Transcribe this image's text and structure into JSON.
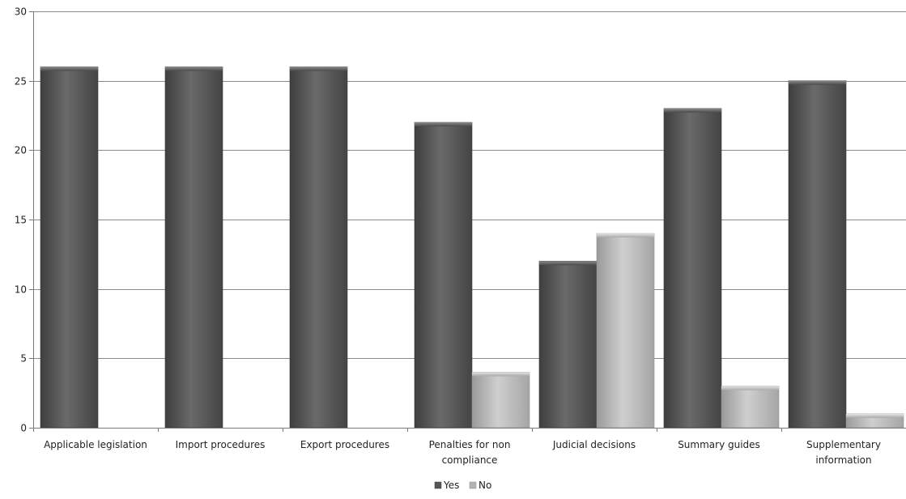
{
  "chart_data": {
    "type": "bar",
    "title": "",
    "xlabel": "",
    "ylabel": "",
    "ylim": [
      0,
      30
    ],
    "y_ticks": [
      0,
      5,
      10,
      15,
      20,
      25,
      30
    ],
    "grid": true,
    "legend_position": "bottom",
    "categories": [
      "Applicable legislation",
      "Import procedures",
      "Export procedures",
      "Penalties for non compliance",
      "Judicial decisions",
      "Summary guides",
      "Supplementary information"
    ],
    "category_label_lines": [
      [
        "Applicable legislation"
      ],
      [
        "Import procedures"
      ],
      [
        "Export procedures"
      ],
      [
        "Penalties for non",
        "compliance"
      ],
      [
        "Judicial decisions"
      ],
      [
        "Summary guides"
      ],
      [
        "Supplementary",
        "information"
      ]
    ],
    "series": [
      {
        "name": "Yes",
        "values": [
          26,
          26,
          26,
          22,
          12,
          23,
          25
        ],
        "color": "#575757"
      },
      {
        "name": "No",
        "values": [
          0,
          0,
          0,
          4,
          14,
          3,
          1
        ],
        "color": "#b3b3b3"
      }
    ]
  }
}
